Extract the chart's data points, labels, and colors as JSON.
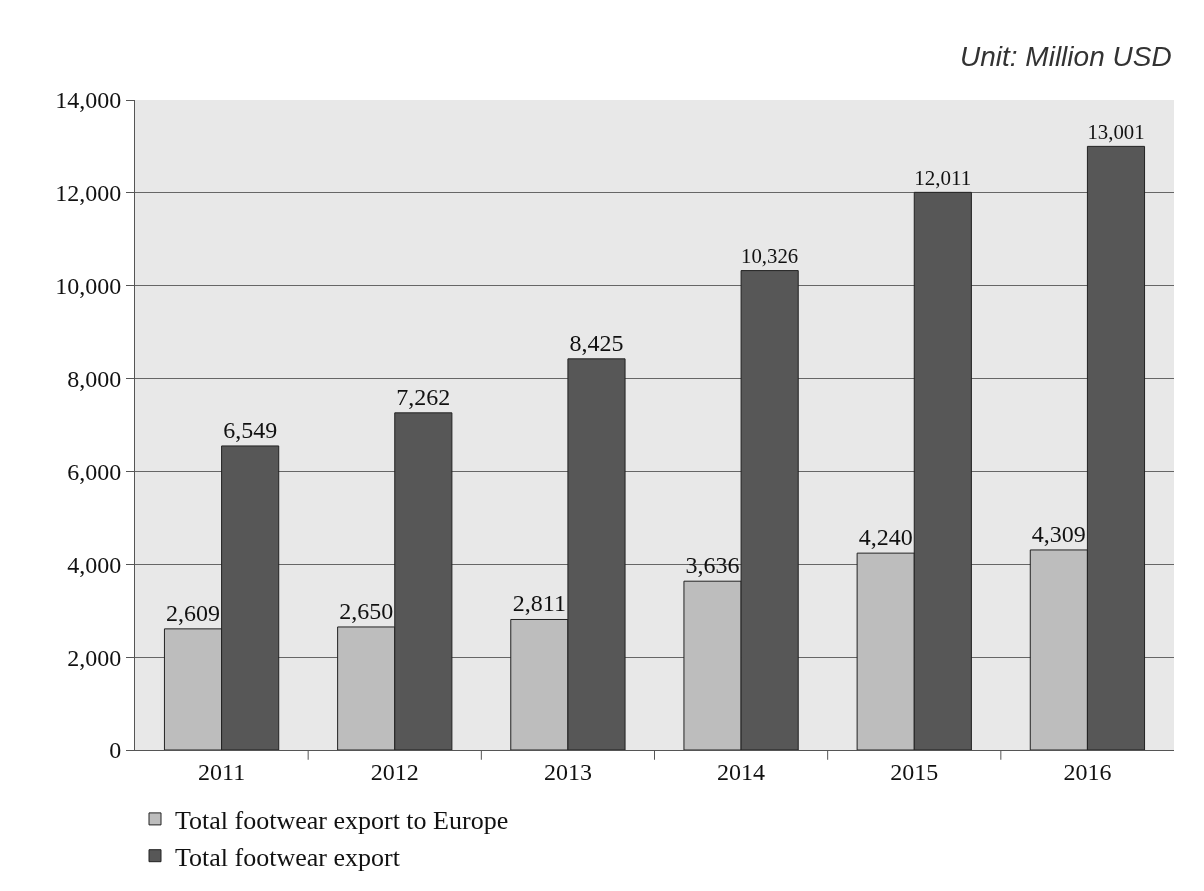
{
  "chart_data": {
    "type": "bar",
    "annotations": [
      "Unit: Million USD"
    ],
    "categories": [
      "2011",
      "2012",
      "2013",
      "2014",
      "2015",
      "2016"
    ],
    "series": [
      {
        "name": "Total footwear export to Europe",
        "color": "#bdbdbd",
        "values": [
          2609,
          2650,
          2811,
          3636,
          4240,
          4309
        ],
        "value_labels": [
          "2,609",
          "2,650",
          "2,811",
          "3,636",
          "4,240",
          "4,309"
        ]
      },
      {
        "name": "Total footwear export",
        "color": "#575757",
        "values": [
          6549,
          7262,
          8425,
          10326,
          12011,
          13001
        ],
        "value_labels": [
          "6,549",
          "7,262",
          "8,425",
          "10,326",
          "12,011",
          "13,001"
        ]
      }
    ],
    "ylim": [
      0,
      14000
    ],
    "yticks": [
      {
        "value": 0,
        "label": "0"
      },
      {
        "value": 2000,
        "label": "2,000"
      },
      {
        "value": 4000,
        "label": "4,000"
      },
      {
        "value": 6000,
        "label": "6,000"
      },
      {
        "value": 8000,
        "label": "8,000"
      },
      {
        "value": 10000,
        "label": "10,000"
      },
      {
        "value": 12000,
        "label": "12,000"
      },
      {
        "value": 14000,
        "label": "14,000"
      }
    ],
    "grid": "y",
    "legend": "bottom"
  }
}
